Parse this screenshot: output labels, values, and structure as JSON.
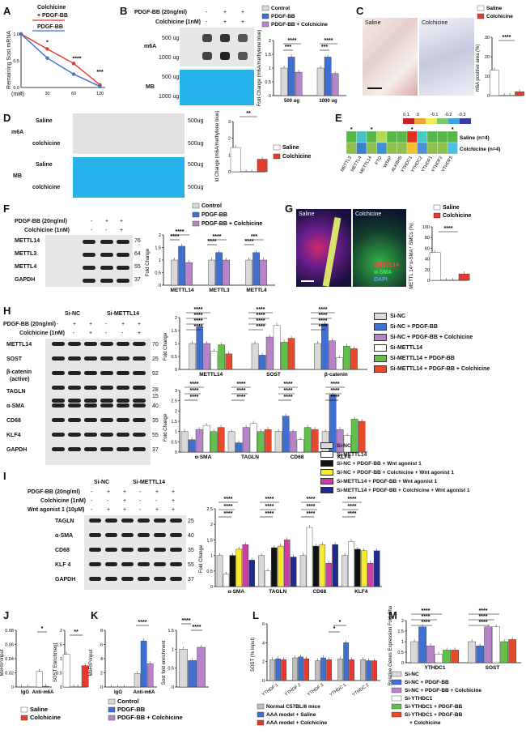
{
  "colors": {
    "control": "#d9d9d9",
    "pdgf": "#3f6fd1",
    "pdgfcol": "#b784c9",
    "saline": "#ffffff",
    "colchicine": "#e23b2f",
    "green": "#62c04a",
    "red2": "#e34b2b",
    "yellow": "#f7e92f",
    "black": "#111111",
    "magenta": "#cc3fa5",
    "navy": "#1f2a8c"
  },
  "A": {
    "label": "A",
    "title1": "Colchicine",
    "title2": "+ PDGF-BB",
    "title3": "PDGF-BB",
    "ylabel": "Remaining Sost mRNA",
    "xunit": "(min)",
    "xticks": [
      "0",
      "30",
      "60",
      "120"
    ],
    "yticks": [
      "0.0",
      "0.5",
      "1.0"
    ],
    "sig": [
      "*",
      "****",
      "***"
    ]
  },
  "B": {
    "label": "B",
    "pdgf": "PDGF-BB (20ng/ml)",
    "col": "Colchicine (1nM)",
    "signs": [
      "-",
      "+",
      "+",
      "-",
      "+",
      "+"
    ],
    "m6a": "m6A",
    "mb": "MB",
    "ug1": "500 ug",
    "ug2": "1000 ug",
    "legend": [
      "Control",
      "PDGF-BB",
      "PDGF-BB + Colchicine"
    ],
    "ylabel": "Fold Change (m6A/methylene blue)",
    "cats": [
      "500 ug",
      "1000 ug"
    ],
    "sig": [
      "***",
      "****",
      "***",
      "****"
    ]
  },
  "C": {
    "label": "C",
    "saline": "Saline",
    "colchicine": "Colchicine",
    "legend": [
      "Saline",
      "Colchicine"
    ],
    "ylabel": "m6A positive area (%)",
    "sig": "****"
  },
  "D": {
    "label": "D",
    "m6a": "m6A",
    "mb": "MB",
    "rows": [
      "Saline",
      "colchicine",
      "Saline",
      "colchicine"
    ],
    "ug": "500ug",
    "ylabel": "Fold Change (m6A/methylene blue)",
    "sig": "**",
    "legend": [
      "Saline",
      "Colchicine"
    ]
  },
  "E": {
    "label": "E",
    "scale": [
      "0.1",
      "0",
      "-0.1",
      "-0.2",
      "-0.3"
    ],
    "rows": [
      "Saline (n=4)",
      "Colchicine (n=4)"
    ],
    "genes": [
      "METTL3",
      "METTL4",
      "METTL14",
      "FTO",
      "WTAP",
      "ALKBH5",
      "YTHDC1",
      "YTHDC2",
      "YTHDF1",
      "YTHDF2",
      "YTHDF3"
    ]
  },
  "F": {
    "label": "F",
    "pdgf": "PDGF-BB (20ng/ml)",
    "col": "Colchicine (1nM)",
    "signs": [
      "-",
      "+",
      "+",
      "-",
      "-",
      "+"
    ],
    "rows": [
      "METTL14",
      "METTL3",
      "METTL4",
      "GAPDH"
    ],
    "kd": [
      "76",
      "64",
      "55",
      "37"
    ],
    "legend": [
      "Control",
      "PDGF-BB",
      "PDGF-BB + Colchicine"
    ],
    "ylabel": "Fold Change",
    "cats": [
      "METTL14",
      "METTL3",
      "METTL4"
    ],
    "sig": [
      "****",
      "****",
      "****",
      "****",
      "****",
      "***"
    ]
  },
  "G": {
    "label": "G",
    "saline": "Saline",
    "colchicine": "Colchicine",
    "stain1": "METTL14",
    "stain2": "α-SMA",
    "stain3": "DAPI",
    "legend": [
      "Saline",
      "Colchicine"
    ],
    "ylabel": "METTL 14⁺α-SMA⁺ SMCs (%)",
    "sig": "****"
  },
  "H": {
    "label": "H",
    "groups": [
      "Si-NC",
      "Si-METTL14"
    ],
    "pdgf": "PDGF-BB (20ng/ml)",
    "col": "Colchicine (1nM)",
    "signs1": [
      "-",
      "+",
      "+",
      "-",
      "+",
      "+"
    ],
    "signs2": [
      "-",
      "-",
      "+",
      "-",
      "-",
      "+"
    ],
    "rows": [
      "METTL14",
      "SOST",
      "β-catenin",
      "(active)",
      "TAGLN",
      "α-SMA",
      "CD68",
      "KLF4",
      "GAPDH"
    ],
    "kd": [
      "70",
      "25",
      "92",
      "28",
      "15",
      "40",
      "35",
      "55",
      "37"
    ],
    "legend": [
      "Si-NC",
      "Si-NC + PDGF-BB",
      "Si-NC + PDGF-BB + Colchicine",
      "Si-METTL14",
      "Si-METTL14 + PDGF-BB",
      "Si-METTL14 + PDGF-BB + Colchicine"
    ],
    "ylabel": "Fold Change",
    "cats1": [
      "METTL14",
      "SOST",
      "β-catenin"
    ],
    "cats2": [
      "α-SMA",
      "TAGLN",
      "CD68",
      "KLF4"
    ]
  },
  "I": {
    "label": "I",
    "groups": [
      "Si-NC",
      "Si-METTL14"
    ],
    "pdgf": "PDGF-BB (20ng/ml)",
    "col": "Colchicine (1nM)",
    "wnt": "Wnt agonist 1 (10μM)",
    "rows": [
      "TAGLN",
      "α-SMA",
      "CD68",
      "KLF 4",
      "GAPDH"
    ],
    "kd": [
      "25",
      "40",
      "35",
      "55",
      "37"
    ],
    "legend": [
      "Si-NC",
      "Si-METTL14",
      "Si-NC + PDGF-BB + Wnt agonist 1",
      "Si-NC + PDGF-BB + Colchicine + Wnt agonist 1",
      "Si-METTL14 + PDGF-BB + Wnt agonist 1",
      "Si-METTL14 + PDGF-BB + Colchicine + Wnt agonist 1"
    ],
    "ylabel": "Fold Change",
    "cats": [
      "α-SMA",
      "TAGLN",
      "CD68",
      "KLF4"
    ]
  },
  "J": {
    "label": "J",
    "ylabel1": "MeRIP/input",
    "cats": [
      "IgG",
      "Anti-m6A"
    ],
    "ylabel2": "SOST Enrichment",
    "sig": [
      "*",
      "**"
    ],
    "legend": [
      "Saline",
      "Colchicine"
    ]
  },
  "K": {
    "label": "K",
    "ylabel1": "MeRIP/input",
    "cats": [
      "IgG",
      "Anti-m6A"
    ],
    "ylabel2": "Sost fold enrichment",
    "sig": [
      "****",
      "****",
      "****"
    ],
    "legend": [
      "Control",
      "PDGF-BB",
      "PDGF-BB + Colchicine"
    ]
  },
  "L": {
    "label": "L",
    "ylabel": "SOST (% Input)",
    "cats": [
      "YTHDF 1",
      "YTHDF 2",
      "YTHDF 3",
      "YTHDC 1",
      "YTHDC 2"
    ],
    "legend": [
      "Normal C57BL/6 mice",
      "AAA model + Saline",
      "AAA model + Colchicine"
    ],
    "sig": [
      "*",
      "*"
    ]
  },
  "M": {
    "label": "M",
    "ylabel": "Relative Genes Expression Fold Change",
    "cats": [
      "YTHDC1",
      "SOST"
    ],
    "legend": [
      "Si-NC",
      "Si-NC + PDGF-BB",
      "Si-NC + PDGF-BB + Colchicine",
      "Si-YTHDC1",
      "Si-YTHDC1 + PDGF-BB",
      "Si-YTHDC1 + PDGF-BB",
      "+ Colchicine"
    ]
  },
  "chart_data": [
    {
      "panel": "A",
      "type": "line",
      "x": [
        0,
        30,
        60,
        120
      ],
      "series": [
        {
          "values": [
            1.0,
            0.72,
            0.45,
            0.05
          ]
        },
        {
          "values": [
            1.0,
            0.55,
            0.25,
            0.02
          ]
        }
      ],
      "ylim": [
        0,
        1.0
      ]
    },
    {
      "panel": "B",
      "type": "bar",
      "categories": [
        "500 ug",
        "1000 ug"
      ],
      "series": [
        {
          "name": "Control",
          "values": [
            1.0,
            1.0
          ]
        },
        {
          "name": "PDGF-BB",
          "values": [
            1.4,
            1.4
          ]
        },
        {
          "name": "PDGF-BB + Colchicine",
          "values": [
            0.85,
            0.8
          ]
        }
      ],
      "ylim": [
        0,
        2.0
      ]
    },
    {
      "panel": "C",
      "type": "bar",
      "categories": [
        "Saline",
        "Colchicine"
      ],
      "values": [
        13,
        2
      ],
      "ylim": [
        0,
        30
      ]
    },
    {
      "panel": "D",
      "type": "bar",
      "categories": [
        "Saline",
        "Colchicine"
      ],
      "values": [
        1.45,
        0.75
      ],
      "ylim": [
        0,
        3
      ]
    },
    {
      "panel": "F",
      "type": "bar",
      "categories": [
        "METTL14",
        "METTL3",
        "METTL4"
      ],
      "series": [
        {
          "name": "Control",
          "values": [
            1.0,
            1.0,
            1.0
          ]
        },
        {
          "name": "PDGF-BB",
          "values": [
            1.55,
            1.3,
            1.3
          ]
        },
        {
          "name": "PDGF-BB + Colchicine",
          "values": [
            0.9,
            1.0,
            1.0
          ]
        }
      ],
      "ylim": [
        0,
        2.0
      ]
    },
    {
      "panel": "G",
      "type": "bar",
      "categories": [
        "Saline",
        "Colchicine"
      ],
      "values": [
        52,
        12
      ],
      "ylim": [
        0,
        100
      ]
    },
    {
      "panel": "H1",
      "type": "bar",
      "categories": [
        "METTL14",
        "SOST",
        "β-catenin"
      ],
      "series": [
        {
          "values": [
            1.0,
            1.0,
            1.0
          ]
        },
        {
          "values": [
            1.65,
            0.55,
            1.75
          ]
        },
        {
          "values": [
            1.0,
            1.25,
            1.1
          ]
        },
        {
          "values": [
            0.7,
            1.7,
            0.45
          ]
        },
        {
          "values": [
            0.95,
            1.05,
            0.9
          ]
        },
        {
          "values": [
            0.6,
            1.2,
            0.8
          ]
        }
      ],
      "ylim": [
        0,
        2.0
      ]
    },
    {
      "panel": "H2",
      "type": "bar",
      "categories": [
        "α-SMA",
        "TAGLN",
        "CD68",
        "KLF4"
      ],
      "series": [
        {
          "values": [
            1.0,
            1.0,
            1.0,
            1.0
          ]
        },
        {
          "values": [
            0.6,
            0.45,
            1.75,
            2.8
          ]
        },
        {
          "values": [
            1.1,
            1.2,
            1.0,
            1.1
          ]
        },
        {
          "values": [
            1.3,
            1.4,
            0.6,
            0.8
          ]
        },
        {
          "values": [
            1.0,
            1.0,
            1.2,
            1.6
          ]
        },
        {
          "values": [
            1.2,
            1.1,
            1.1,
            1.5
          ]
        }
      ],
      "ylim": [
        0,
        3
      ]
    },
    {
      "panel": "I",
      "type": "bar",
      "categories": [
        "α-SMA",
        "TAGLN",
        "CD68",
        "KLF4"
      ],
      "series": [
        {
          "values": [
            1.0,
            1.0,
            1.0,
            1.0
          ]
        },
        {
          "values": [
            0.4,
            0.5,
            1.9,
            1.45
          ]
        },
        {
          "values": [
            1.0,
            1.25,
            1.3,
            1.2
          ]
        },
        {
          "values": [
            1.2,
            1.3,
            1.35,
            1.15
          ]
        },
        {
          "values": [
            1.35,
            1.5,
            0.75,
            0.75
          ]
        },
        {
          "values": [
            0.85,
            0.95,
            1.35,
            1.15
          ]
        }
      ],
      "ylim": [
        0,
        2.5
      ]
    },
    {
      "panel": "J1",
      "type": "bar",
      "categories": [
        "IgG",
        "Anti-m6A"
      ],
      "series": [
        {
          "name": "Saline",
          "values": [
            0.0,
            0.022
          ]
        },
        {
          "name": "Colchicine",
          "values": [
            0.0,
            0.001
          ]
        }
      ],
      "ylim": [
        0,
        0.08
      ]
    },
    {
      "panel": "J2",
      "type": "bar",
      "categories": [
        "Saline",
        "Colchicine"
      ],
      "values": [
        1.15,
        0.75
      ],
      "ylim": [
        0,
        2.0
      ]
    },
    {
      "panel": "K1",
      "type": "bar",
      "categories": [
        "IgG",
        "Anti-m6A"
      ],
      "series": [
        {
          "name": "Control",
          "values": [
            0.0,
            1.9
          ]
        },
        {
          "name": "PDGF-BB",
          "values": [
            0.0,
            6.5
          ]
        },
        {
          "name": "PDGF-BB + Colchicine",
          "values": [
            0.0,
            3.3
          ]
        }
      ],
      "ylim": [
        0,
        8
      ]
    },
    {
      "panel": "K2",
      "type": "bar",
      "categories": [
        "Control",
        "PDGF-BB",
        "PDGF-BB + Colchicine"
      ],
      "values": [
        1.0,
        0.7,
        1.05
      ],
      "ylim": [
        0,
        1.5
      ]
    },
    {
      "panel": "L",
      "type": "bar",
      "categories": [
        "YTHDF 1",
        "YTHDF 2",
        "YTHDF 3",
        "YTHDC 1",
        "YTHDC 2"
      ],
      "series": [
        {
          "name": "Normal C57BL/6 mice",
          "values": [
            2.2,
            2.4,
            2.1,
            2.3,
            2.2
          ]
        },
        {
          "name": "AAA model + Saline",
          "values": [
            2.3,
            2.5,
            2.4,
            4.0,
            2.1
          ]
        },
        {
          "name": "AAA model + Colchicine",
          "values": [
            2.2,
            2.3,
            2.2,
            2.2,
            2.1
          ]
        }
      ],
      "ylim": [
        0,
        6
      ]
    },
    {
      "panel": "M",
      "type": "bar",
      "categories": [
        "YTHDC1",
        "SOST"
      ],
      "series": [
        {
          "values": [
            1.0,
            1.0
          ]
        },
        {
          "values": [
            1.7,
            0.8
          ]
        },
        {
          "values": [
            0.8,
            1.7
          ]
        },
        {
          "values": [
            0.4,
            1.7
          ]
        },
        {
          "values": [
            0.6,
            1.0
          ]
        },
        {
          "values": [
            0.6,
            1.1
          ]
        }
      ],
      "ylim": [
        0,
        2.0
      ]
    }
  ]
}
